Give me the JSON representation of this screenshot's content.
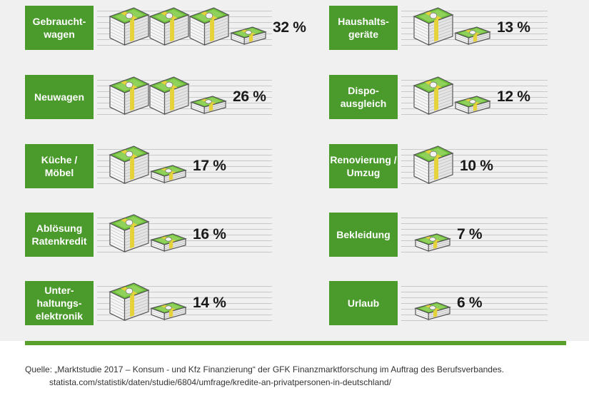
{
  "chart_data": {
    "type": "bar",
    "categories": [
      "Gebraucht-\nwagen",
      "Neuwagen",
      "Küche /\nMöbel",
      "Ablösung\nRatenkredit",
      "Unter-\nhaltungs-\nelektronik",
      "Haushalts-\ngeräte",
      "Dispo-\nausgleich",
      "Renovierung /\nUmzug",
      "Bekleidung",
      "Urlaub"
    ],
    "values": [
      32,
      26,
      17,
      16,
      14,
      13,
      12,
      10,
      7,
      6
    ],
    "value_labels": [
      "32 %",
      "26 %",
      "17 %",
      "16 %",
      "14 %",
      "13 %",
      "12 %",
      "10 %",
      "7 %",
      "6 %"
    ],
    "icon": "money-stack-icon",
    "units_per_full_stack": 10
  },
  "source": {
    "line1": "Quelle: „Marktstudie 2017 – Konsum - und Kfz Finanzierung“ der GFK Finanzmarktforschung im Auftrag des Berufsverbandes.",
    "line2": "statista.com/statistik/daten/studie/6804/umfrage/kredite-an-privatpersonen-in-deutschland/"
  },
  "colors": {
    "label_bg": "#4a9a2c",
    "bill_green": "#6cbf3a",
    "band_yellow": "#e6d23a",
    "stack_outline": "#555555"
  }
}
